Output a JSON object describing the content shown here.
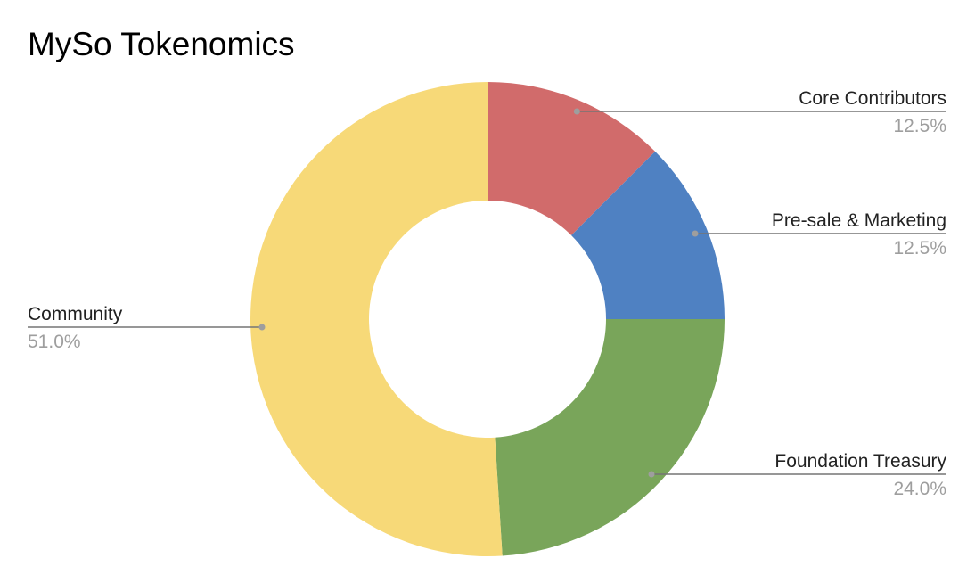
{
  "chart_data": {
    "type": "pie",
    "title": "MySo Tokenomics",
    "donut": true,
    "legend": "none",
    "slices": [
      {
        "label": "Core Contributors",
        "value": 12.5,
        "percent_label": "12.5%",
        "color": "#d16b6b"
      },
      {
        "label": "Pre-sale & Marketing",
        "value": 12.5,
        "percent_label": "12.5%",
        "color": "#4f81c2"
      },
      {
        "label": "Foundation Treasury",
        "value": 24.0,
        "percent_label": "24.0%",
        "color": "#79a55a"
      },
      {
        "label": "Community",
        "value": 51.0,
        "percent_label": "51.0%",
        "color": "#f7d978"
      }
    ],
    "leader_line_color": "#757575",
    "leader_dot_color": "#9e9e9e"
  }
}
